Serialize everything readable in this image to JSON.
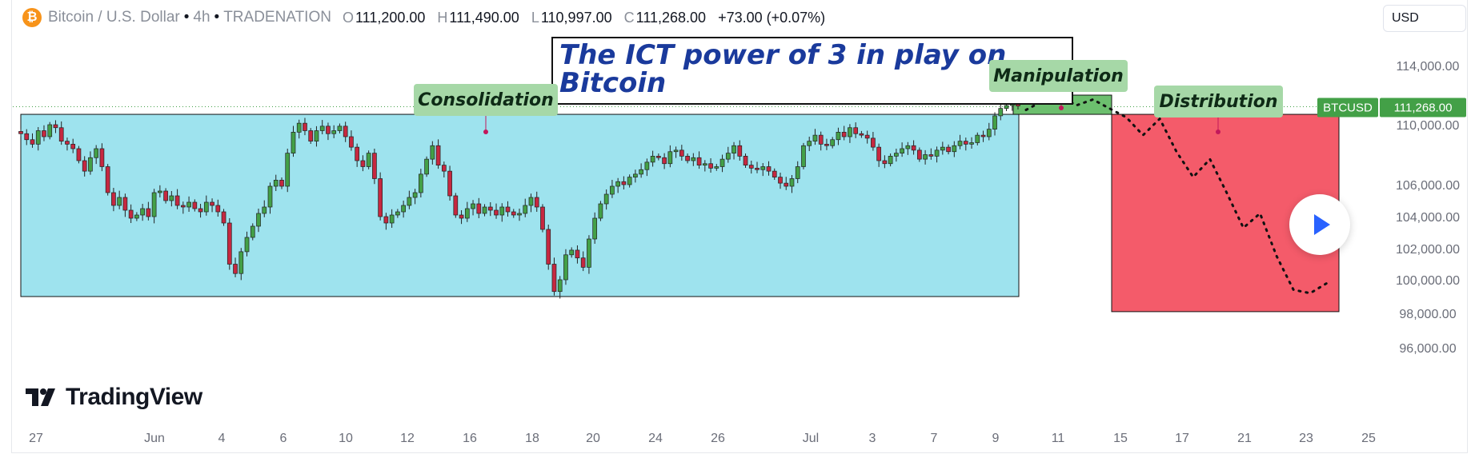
{
  "header": {
    "icon": "bitcoin-icon",
    "symbol_text": "Bitcoin / U.S. Dollar",
    "sep1": "•",
    "interval": "4h",
    "sep2": "•",
    "exchange": "TRADENATION",
    "open_key": "O",
    "open": "111,200.00",
    "high_key": "H",
    "high": "111,490.00",
    "low_key": "L",
    "low": "110,997.00",
    "close_key": "C",
    "close": "111,268.00",
    "change": "+73.00 (+0.07%)"
  },
  "currency_button": "USD",
  "callout_text": "The ICT power of 3 in play on Bitcoin",
  "phases": {
    "consolidation": "Consolidation",
    "manipulation": "Manipulation",
    "distribution": "Distribution"
  },
  "price_badge": {
    "symbol": "BTCUSD",
    "price": "111,268.00",
    "color": "#43a047"
  },
  "logo_text": "TradingView",
  "colors": {
    "consolidation_box": "#9ee3ee",
    "manipulation_box": "#6cbf6e",
    "distribution_box": "#f45b6a",
    "candle_up": "#43a047",
    "candle_down": "#c62840",
    "callout_text": "#1a3a9c"
  },
  "chart_data": {
    "type": "candlestick",
    "symbol": "Bitcoin / U.S. Dollar",
    "interval": "4h",
    "yaxis_ticks": [
      "114,000.00",
      "110,000.00",
      "106,000.00",
      "104,000.00",
      "102,000.00",
      "100,000.00",
      "98,000.00",
      "96,000.00"
    ],
    "xaxis_ticks": [
      "27",
      "Jun",
      "4",
      "6",
      "10",
      "12",
      "16",
      "18",
      "20",
      "24",
      "26",
      "Jul",
      "3",
      "7",
      "9",
      "11",
      "15",
      "17",
      "21",
      "23",
      "25"
    ],
    "ylim": [
      95000,
      115500
    ],
    "last_price": 111268,
    "zones": [
      {
        "name": "Consolidation",
        "y_low": 99000,
        "y_high": 110700
      },
      {
        "name": "Manipulation",
        "y_low": 110700,
        "y_high": 112000
      },
      {
        "name": "Distribution",
        "y_low": 98100,
        "y_high": 110700
      }
    ],
    "projected_path": [
      111000,
      111600,
      112000,
      111300,
      111700,
      111100,
      110500,
      109300,
      110400,
      108200,
      106500,
      107700,
      105500,
      103300,
      104200,
      101500,
      99400,
      99200,
      99800
    ],
    "candles_close": [
      109400,
      109000,
      108700,
      109600,
      109200,
      110000,
      109800,
      108900,
      108700,
      108400,
      107600,
      106900,
      107800,
      108400,
      107200,
      105500,
      104700,
      105200,
      104400,
      103900,
      104100,
      104500,
      104000,
      105500,
      105600,
      105000,
      105300,
      104700,
      104600,
      104900,
      104500,
      104300,
      104900,
      104700,
      104300,
      103600,
      101000,
      100400,
      101800,
      102700,
      103400,
      104200,
      104600,
      105900,
      106300,
      105900,
      108100,
      109500,
      110100,
      109600,
      108900,
      109600,
      109900,
      109400,
      109600,
      109900,
      109200,
      108500,
      107600,
      107200,
      108100,
      106400,
      104000,
      103600,
      104100,
      104300,
      104700,
      105200,
      105500,
      106700,
      107700,
      108600,
      107300,
      106900,
      105300,
      104100,
      103900,
      104500,
      104800,
      104200,
      104600,
      104400,
      104100,
      104600,
      104300,
      104100,
      104200,
      104700,
      105200,
      104600,
      103200,
      101000,
      99300,
      100000,
      101600,
      101900,
      101400,
      100800,
      102600,
      103900,
      104800,
      105400,
      105900,
      106200,
      106000,
      106500,
      106700,
      107000,
      107500,
      107900,
      107800,
      107400,
      108200,
      108300,
      107900,
      107600,
      107800,
      107300,
      107400,
      107100,
      107200,
      107700,
      108100,
      108600,
      107900,
      107300,
      107100,
      107000,
      107200,
      106900,
      106500,
      106100,
      105900,
      106400,
      107200,
      108600,
      108900,
      109300,
      108700,
      108600,
      109000,
      109500,
      109200,
      109800,
      109400,
      109300,
      109100,
      108500,
      107600,
      107400,
      107900,
      108100,
      108400,
      108600,
      108300,
      107700,
      108000,
      107900,
      108300,
      108500,
      108200,
      108600,
      108900,
      108700,
      108800,
      109300,
      109200,
      109700,
      110600,
      111100,
      111300,
      111400,
      111268
    ]
  }
}
